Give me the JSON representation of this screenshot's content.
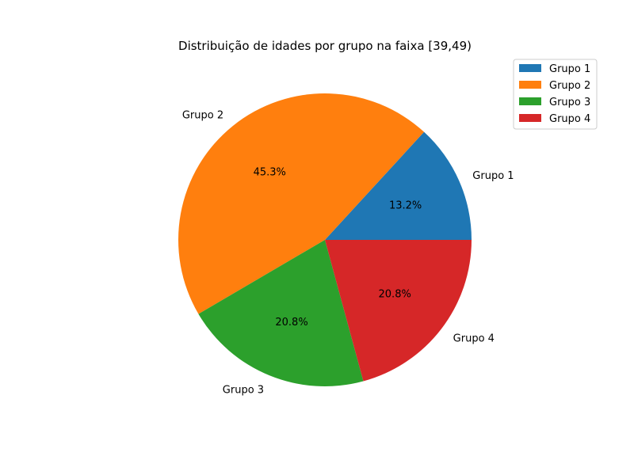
{
  "chart_data": {
    "type": "pie",
    "title": "Distribuição de idades por grupo na faixa [39,49)",
    "categories": [
      "Grupo 1",
      "Grupo 2",
      "Grupo 3",
      "Grupo 4"
    ],
    "values": [
      13.2,
      45.3,
      20.8,
      20.8
    ],
    "percent_labels": [
      "13.2%",
      "45.3%",
      "20.8%",
      "20.8%"
    ],
    "colors": [
      "#1f77b4",
      "#ff7f0e",
      "#2ca02c",
      "#d62728"
    ],
    "start_angle_deg": 0,
    "direction": "counterclockwise",
    "legend": {
      "position": "top-right",
      "entries": [
        "Grupo 1",
        "Grupo 2",
        "Grupo 3",
        "Grupo 4"
      ]
    }
  }
}
